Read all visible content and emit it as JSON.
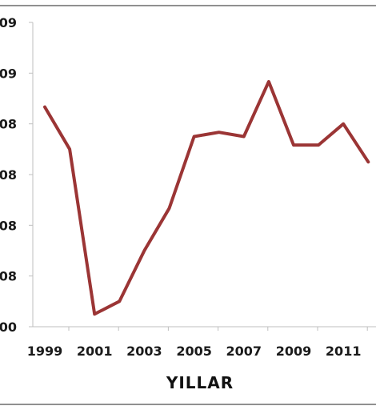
{
  "chart_data": {
    "type": "line",
    "xlabel": "YILLAR",
    "ylabel": "",
    "title": "",
    "x": [
      1999,
      2000,
      2001,
      2002,
      2003,
      2004,
      2005,
      2006,
      2007,
      2008,
      2009,
      2010,
      2011,
      2012
    ],
    "series": [
      {
        "values": [
          0.26,
          0.21,
          0.015,
          0.03,
          0.09,
          0.14,
          0.225,
          0.23,
          0.225,
          0.29,
          0.215,
          0.215,
          0.24,
          0.195
        ],
        "color": "#9b3535"
      }
    ],
    "x_tick_labels": [
      "1999",
      "2001",
      "2003",
      "2005",
      "2007",
      "2009",
      "2011"
    ],
    "y_tick_labels": [
      "09",
      "09",
      "08",
      "08",
      "08",
      "08",
      "00"
    ],
    "ylim": [
      0,
      0.36
    ],
    "grid": false,
    "legend": "none"
  }
}
